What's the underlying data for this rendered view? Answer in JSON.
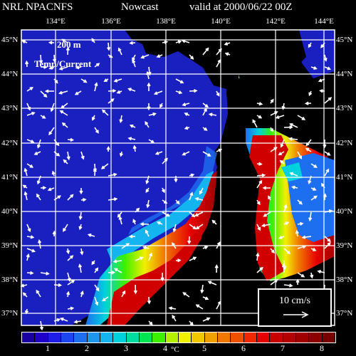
{
  "header": {
    "agency": "NRL NPACNFS",
    "product": "Nowcast",
    "valid": "valid at 2000/06/22 00Z"
  },
  "overlay": {
    "depth": "200 m",
    "fields": "Temp/Current"
  },
  "longitude_labels": [
    "134°E",
    "136°E",
    "138°E",
    "140°E",
    "142°E",
    "144°E"
  ],
  "latitude_labels": [
    "45°N",
    "44°N",
    "43°N",
    "42°N",
    "41°N",
    "40°N",
    "39°N",
    "38°N",
    "37°N"
  ],
  "scale_arrow": {
    "label": "10 cm/s"
  },
  "colorbar": {
    "unit": "°C",
    "ticks": [
      "1",
      "2",
      "3",
      "4",
      "5",
      "6",
      "7",
      "8"
    ],
    "colors": [
      "#1a00a0",
      "#2000c8",
      "#1e1ee6",
      "#1e46f0",
      "#1e6ef0",
      "#1e96f0",
      "#14b4f0",
      "#00d2dc",
      "#00dca0",
      "#00e650",
      "#3cf000",
      "#b4f000",
      "#f0f000",
      "#f0c800",
      "#f0a000",
      "#f07800",
      "#f05000",
      "#f02800",
      "#e60000",
      "#c80000",
      "#b40000",
      "#a00000",
      "#8c0000",
      "#780000"
    ]
  }
}
